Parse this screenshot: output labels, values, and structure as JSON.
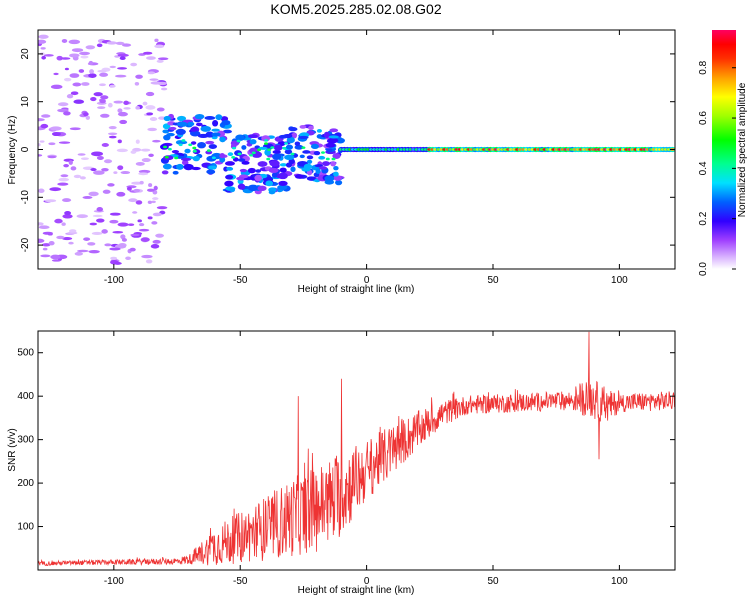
{
  "title": "KOM5.2025.285.02.08.G02",
  "chart_data": [
    {
      "type": "heatmap",
      "name": "spectrogram",
      "xlabel": "Height of straight line (km)",
      "ylabel": "Frequency (Hz)",
      "xlim": [
        -130,
        122
      ],
      "ylim": [
        -25,
        25
      ],
      "xticks": [
        -100,
        -50,
        0,
        50,
        100
      ],
      "yticks": [
        -20,
        -10,
        0,
        10,
        20
      ],
      "colorbar": {
        "label": "Normalized spectral amplitude",
        "range": [
          0,
          0.95
        ],
        "ticks": [
          0.0,
          0.2,
          0.4,
          0.6,
          0.8
        ],
        "colors": [
          "#ffffff",
          "#d9b3ff",
          "#a040ff",
          "#6000ff",
          "#0000ff",
          "#00a0ff",
          "#00ffff",
          "#00ff80",
          "#00ff00",
          "#c0ff00",
          "#ffff00",
          "#ffa000",
          "#ff4000",
          "#ff0000",
          "#ff0060"
        ]
      },
      "features": [
        {
          "segment": "scattered noise",
          "x_range": [
            -130,
            -80
          ],
          "freq_range": [
            -24,
            24
          ],
          "amplitude": 0.08
        },
        {
          "segment": "broadband ridge",
          "x_range": [
            -80,
            -10
          ],
          "freq_range": [
            -8,
            4
          ],
          "amplitude": 0.25
        },
        {
          "segment": "emerging tone",
          "x_range": [
            -10,
            25
          ],
          "freq_range": [
            -1,
            1
          ],
          "amplitude": 0.45
        },
        {
          "segment": "strong tone",
          "x_range": [
            25,
            122
          ],
          "freq_range": [
            -1,
            1
          ],
          "amplitude": 0.85
        }
      ]
    },
    {
      "type": "line",
      "name": "snr",
      "xlabel": "Height of straight line (km)",
      "ylabel": "SNR (v/v)",
      "xlim": [
        -130,
        122
      ],
      "ylim": [
        0,
        550
      ],
      "xticks": [
        -100,
        -50,
        0,
        50,
        100
      ],
      "yticks": [
        100,
        200,
        300,
        400,
        500
      ],
      "color": "#ee3333",
      "envelope": {
        "x": [
          -130,
          -100,
          -75,
          -70,
          -60,
          -50,
          -40,
          -30,
          -20,
          -10,
          0,
          10,
          20,
          30,
          40,
          60,
          80,
          88,
          95,
          100,
          122
        ],
        "mean": [
          15,
          18,
          20,
          25,
          55,
          75,
          95,
          120,
          140,
          175,
          230,
          275,
          320,
          360,
          380,
          385,
          390,
          400,
          375,
          385,
          390
        ],
        "amp": [
          5,
          6,
          8,
          12,
          45,
          60,
          75,
          90,
          100,
          100,
          70,
          60,
          45,
          30,
          22,
          22,
          22,
          50,
          40,
          22,
          22
        ]
      },
      "spikes": [
        {
          "x": -27,
          "y": 400
        },
        {
          "x": -10,
          "y": 440
        },
        {
          "x": 88,
          "y": 548
        },
        {
          "x": 92,
          "y": 255
        }
      ]
    }
  ]
}
